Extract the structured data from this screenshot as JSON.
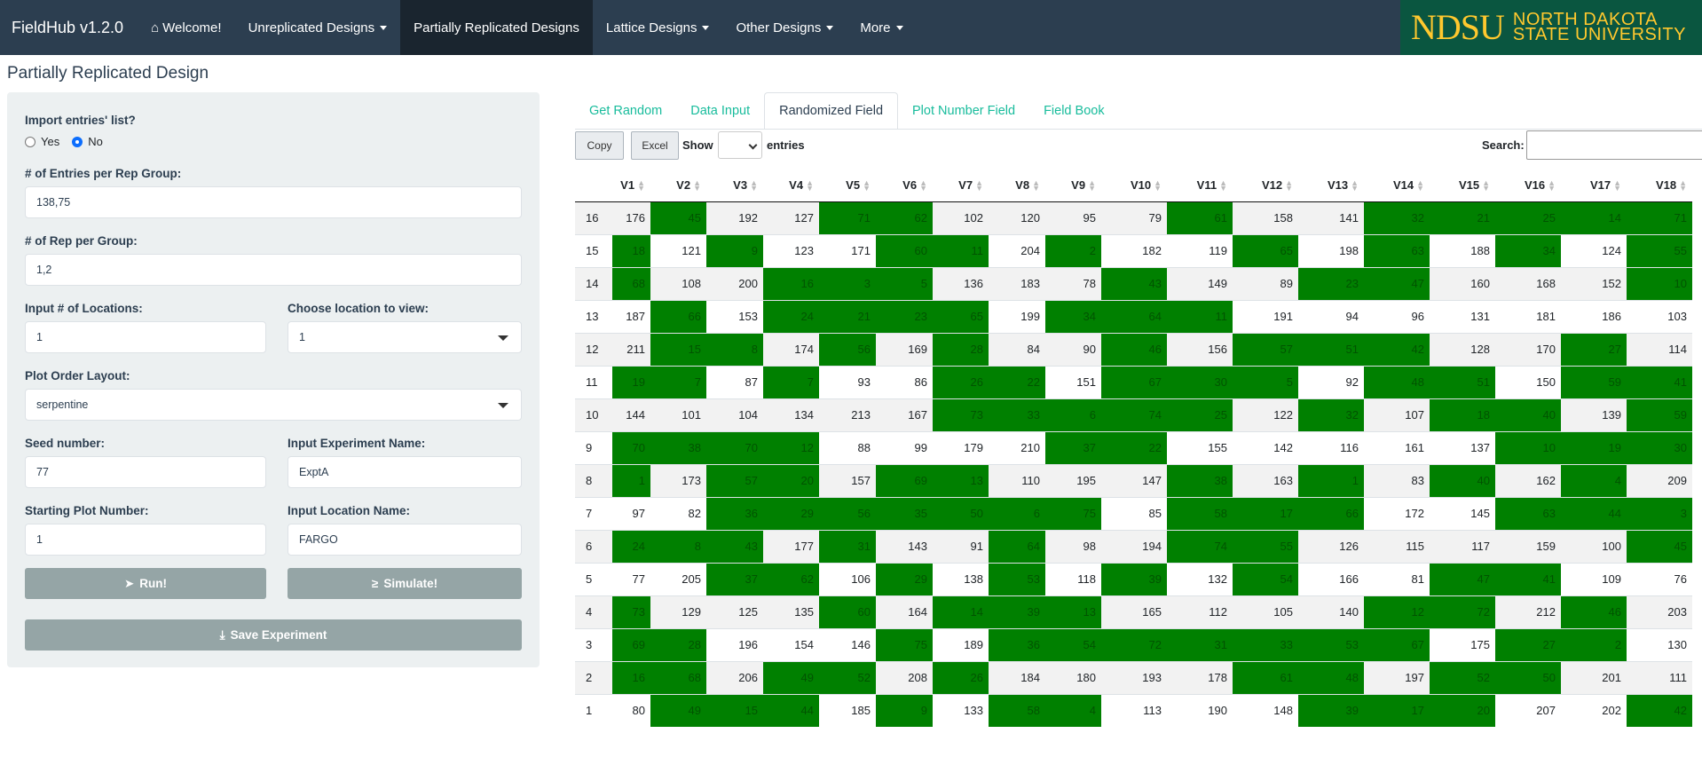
{
  "navbar": {
    "brand": "FieldHub v1.2.0",
    "welcome": "Welcome!",
    "items": [
      "Unreplicated Designs",
      "Partially Replicated Designs",
      "Lattice Designs",
      "Other Designs",
      "More"
    ],
    "logo_abbr": "NDSU",
    "logo_line1": "NORTH DAKOTA",
    "logo_line2": "STATE UNIVERSITY"
  },
  "page_title": "Partially Replicated Design",
  "form": {
    "import_label": "Import entries' list?",
    "radio_yes": "Yes",
    "radio_no": "No",
    "entries_label": "# of Entries per Rep Group:",
    "entries_value": "138,75",
    "reps_label": "# of Rep per Group:",
    "reps_value": "1,2",
    "locations_label": "Input # of Locations:",
    "locations_value": "1",
    "view_location_label": "Choose location to view:",
    "view_location_value": "1",
    "layout_label": "Plot Order Layout:",
    "layout_value": "serpentine",
    "seed_label": "Seed number:",
    "seed_value": "77",
    "exp_name_label": "Input Experiment Name:",
    "exp_name_value": "ExptA",
    "start_plot_label": "Starting Plot Number:",
    "start_plot_value": "1",
    "location_name_label": "Input Location Name:",
    "location_name_value": "FARGO",
    "run_button": "Run!",
    "simulate_button": "Simulate!",
    "save_button": "Save Experiment"
  },
  "tabs": [
    "Get Random",
    "Data Input",
    "Randomized Field",
    "Plot Number Field",
    "Field Book"
  ],
  "table_controls": {
    "copy": "Copy",
    "excel": "Excel",
    "show": "Show",
    "entries": "entries",
    "search": "Search:"
  },
  "table": {
    "columns": [
      "",
      "V1",
      "V2",
      "V3",
      "V4",
      "V5",
      "V6",
      "V7",
      "V8",
      "V9",
      "V10",
      "V11",
      "V12",
      "V13",
      "V14",
      "V15",
      "V16",
      "V17",
      "V18"
    ],
    "rows": [
      [
        "16",
        "176",
        "45",
        "192",
        "127",
        "71",
        "62",
        "102",
        "120",
        "95",
        "79",
        "61",
        "158",
        "141",
        "32",
        "21",
        "25",
        "14",
        "71"
      ],
      [
        "15",
        "18",
        "121",
        "9",
        "123",
        "171",
        "60",
        "11",
        "204",
        "2",
        "182",
        "119",
        "65",
        "198",
        "63",
        "188",
        "34",
        "124",
        "55"
      ],
      [
        "14",
        "68",
        "108",
        "200",
        "16",
        "3",
        "5",
        "136",
        "183",
        "78",
        "43",
        "149",
        "89",
        "23",
        "47",
        "160",
        "168",
        "152",
        "10"
      ],
      [
        "13",
        "187",
        "66",
        "153",
        "24",
        "21",
        "23",
        "65",
        "199",
        "34",
        "64",
        "11",
        "191",
        "94",
        "96",
        "131",
        "181",
        "186",
        "103"
      ],
      [
        "12",
        "211",
        "15",
        "8",
        "174",
        "56",
        "169",
        "28",
        "84",
        "90",
        "46",
        "156",
        "57",
        "51",
        "42",
        "128",
        "170",
        "27",
        "114"
      ],
      [
        "11",
        "19",
        "7",
        "87",
        "7",
        "93",
        "86",
        "26",
        "22",
        "151",
        "67",
        "30",
        "5",
        "92",
        "48",
        "51",
        "150",
        "59",
        "41"
      ],
      [
        "10",
        "144",
        "101",
        "104",
        "134",
        "213",
        "167",
        "73",
        "33",
        "6",
        "74",
        "25",
        "122",
        "32",
        "107",
        "18",
        "40",
        "139",
        "59"
      ],
      [
        "9",
        "70",
        "38",
        "70",
        "12",
        "88",
        "99",
        "179",
        "210",
        "37",
        "22",
        "155",
        "142",
        "116",
        "161",
        "137",
        "10",
        "19",
        "30"
      ],
      [
        "8",
        "1",
        "173",
        "57",
        "20",
        "157",
        "69",
        "13",
        "110",
        "195",
        "147",
        "38",
        "163",
        "1",
        "83",
        "40",
        "162",
        "4",
        "209"
      ],
      [
        "7",
        "97",
        "82",
        "36",
        "29",
        "56",
        "35",
        "50",
        "6",
        "75",
        "85",
        "58",
        "17",
        "66",
        "172",
        "145",
        "63",
        "44",
        "3"
      ],
      [
        "6",
        "24",
        "8",
        "43",
        "177",
        "31",
        "143",
        "91",
        "64",
        "98",
        "194",
        "74",
        "55",
        "126",
        "115",
        "117",
        "159",
        "100",
        "45"
      ],
      [
        "5",
        "77",
        "205",
        "37",
        "62",
        "106",
        "29",
        "138",
        "53",
        "118",
        "39",
        "132",
        "54",
        "166",
        "81",
        "47",
        "41",
        "109",
        "76"
      ],
      [
        "4",
        "73",
        "129",
        "125",
        "135",
        "60",
        "164",
        "14",
        "39",
        "13",
        "165",
        "112",
        "105",
        "140",
        "12",
        "72",
        "212",
        "46",
        "203"
      ],
      [
        "3",
        "69",
        "28",
        "196",
        "154",
        "146",
        "75",
        "189",
        "36",
        "54",
        "72",
        "31",
        "33",
        "53",
        "67",
        "175",
        "27",
        "2",
        "130"
      ],
      [
        "2",
        "16",
        "68",
        "206",
        "49",
        "52",
        "208",
        "26",
        "184",
        "180",
        "193",
        "178",
        "61",
        "48",
        "197",
        "52",
        "50",
        "201",
        "111"
      ],
      [
        "1",
        "80",
        "49",
        "15",
        "44",
        "185",
        "9",
        "133",
        "58",
        "4",
        "113",
        "190",
        "148",
        "39",
        "17",
        "20",
        "207",
        "202",
        "42"
      ]
    ],
    "highlight": [
      [
        0,
        1,
        0,
        0,
        1,
        1,
        0,
        0,
        0,
        0,
        1,
        0,
        0,
        1,
        1,
        1,
        1,
        1
      ],
      [
        1,
        0,
        1,
        0,
        0,
        1,
        1,
        0,
        1,
        0,
        0,
        1,
        0,
        1,
        0,
        1,
        0,
        1
      ],
      [
        1,
        0,
        0,
        1,
        1,
        1,
        0,
        0,
        0,
        1,
        0,
        0,
        1,
        1,
        0,
        0,
        0,
        1
      ],
      [
        0,
        1,
        0,
        1,
        1,
        1,
        1,
        0,
        1,
        1,
        1,
        0,
        0,
        0,
        0,
        0,
        0,
        0
      ],
      [
        0,
        1,
        1,
        0,
        1,
        0,
        1,
        0,
        0,
        1,
        0,
        1,
        1,
        1,
        0,
        0,
        1,
        0
      ],
      [
        1,
        1,
        0,
        1,
        0,
        0,
        1,
        1,
        0,
        1,
        1,
        1,
        0,
        1,
        1,
        0,
        1,
        1
      ],
      [
        0,
        0,
        0,
        0,
        0,
        0,
        1,
        1,
        1,
        1,
        1,
        0,
        1,
        0,
        1,
        1,
        0,
        1
      ],
      [
        1,
        1,
        1,
        1,
        0,
        0,
        0,
        0,
        1,
        1,
        0,
        0,
        0,
        0,
        0,
        1,
        1,
        1
      ],
      [
        1,
        0,
        1,
        1,
        0,
        1,
        1,
        0,
        0,
        0,
        1,
        0,
        1,
        0,
        1,
        0,
        1,
        0
      ],
      [
        0,
        0,
        1,
        1,
        1,
        1,
        1,
        1,
        1,
        0,
        1,
        1,
        1,
        0,
        0,
        1,
        1,
        1
      ],
      [
        1,
        1,
        1,
        0,
        1,
        0,
        0,
        1,
        0,
        0,
        1,
        1,
        0,
        0,
        0,
        0,
        0,
        1
      ],
      [
        0,
        0,
        1,
        1,
        0,
        1,
        0,
        1,
        0,
        1,
        0,
        1,
        0,
        0,
        1,
        1,
        0,
        0
      ],
      [
        1,
        0,
        0,
        0,
        1,
        0,
        1,
        1,
        1,
        0,
        0,
        0,
        0,
        1,
        1,
        0,
        1,
        0
      ],
      [
        1,
        1,
        0,
        0,
        0,
        1,
        0,
        1,
        1,
        1,
        1,
        1,
        1,
        1,
        0,
        1,
        1,
        0
      ],
      [
        1,
        1,
        0,
        1,
        1,
        0,
        1,
        0,
        0,
        0,
        0,
        1,
        1,
        0,
        1,
        1,
        0,
        0
      ],
      [
        0,
        1,
        1,
        1,
        0,
        1,
        0,
        1,
        1,
        0,
        0,
        0,
        1,
        1,
        1,
        0,
        0,
        1
      ]
    ],
    "highlight_color": "#008000"
  }
}
